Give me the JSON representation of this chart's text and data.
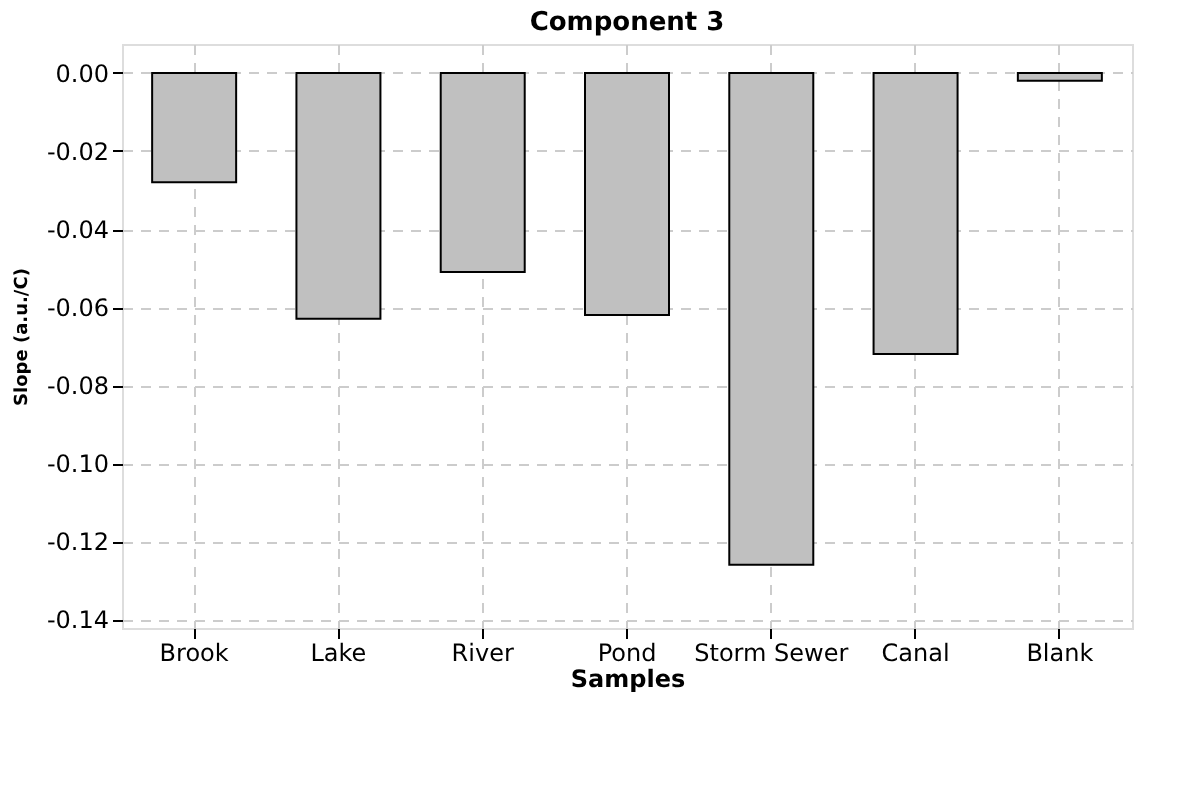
{
  "chart_data": {
    "type": "bar",
    "title": "Component 3",
    "xlabel": "Samples",
    "ylabel": "Slope (a.u./C)",
    "categories": [
      "Brook",
      "Lake",
      "River",
      "Pond",
      "Storm Sewer",
      "Canal",
      "Blank"
    ],
    "values": [
      -0.028,
      -0.063,
      -0.051,
      -0.062,
      -0.126,
      -0.072,
      -0.002
    ],
    "color": "#c0c0c0",
    "ylim": [
      -0.1422,
      0.0074
    ],
    "yticks": [
      {
        "value": 0,
        "label": "0.00"
      },
      {
        "value": -0.02,
        "label": "-0.02"
      },
      {
        "value": -0.04,
        "label": "-0.04"
      },
      {
        "value": -0.06,
        "label": "-0.06"
      },
      {
        "value": -0.08,
        "label": "-0.08"
      },
      {
        "value": -0.1,
        "label": "-0.10"
      },
      {
        "value": -0.12,
        "label": "-0.12"
      },
      {
        "value": -0.14,
        "label": "-0.14"
      }
    ],
    "grid": true
  }
}
